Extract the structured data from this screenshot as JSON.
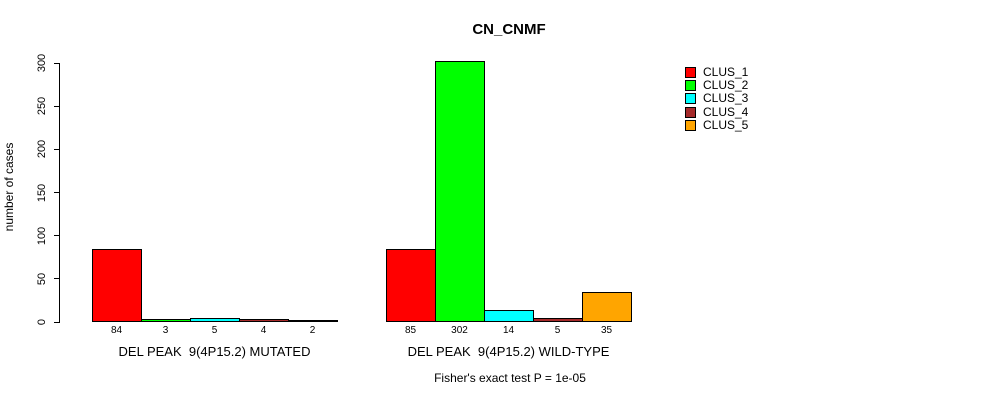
{
  "title": "CN_CNMF",
  "footnote": "Fisher's exact test P = 1e-05",
  "chart_data": {
    "type": "bar",
    "title": "CN_CNMF",
    "xlabel": "",
    "ylabel": "number of cases",
    "ylim": [
      0,
      300
    ],
    "yticks": [
      0,
      50,
      100,
      150,
      200,
      250,
      300
    ],
    "grid": false,
    "legend_position": "right",
    "bar_value_labels": true,
    "categories": [
      "DEL PEAK  9(4P15.2) MUTATED",
      "DEL PEAK  9(4P15.2) WILD-TYPE"
    ],
    "series": [
      {
        "name": "CLUS_1",
        "color": "#FF0000",
        "values": [
          84,
          85
        ]
      },
      {
        "name": "CLUS_2",
        "color": "#00FF00",
        "values": [
          3,
          302
        ]
      },
      {
        "name": "CLUS_3",
        "color": "#00FFFF",
        "values": [
          5,
          14
        ]
      },
      {
        "name": "CLUS_4",
        "color": "#A52A2A",
        "values": [
          4,
          5
        ]
      },
      {
        "name": "CLUS_5",
        "color": "#FFA500",
        "values": [
          2,
          35
        ]
      }
    ],
    "annotation": "Fisher's exact test P = 1e-05"
  }
}
